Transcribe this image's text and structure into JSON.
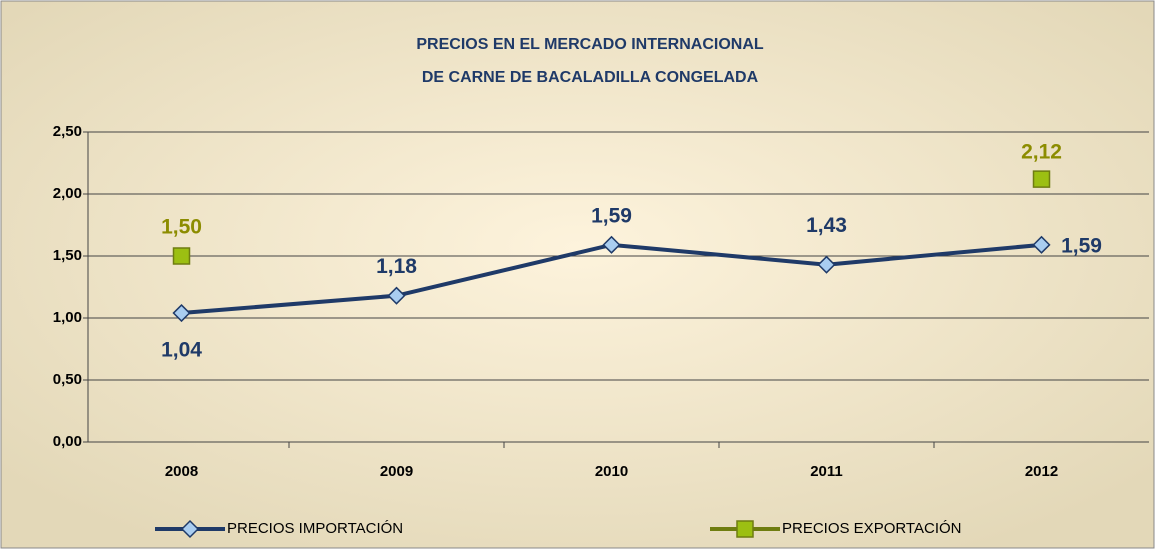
{
  "chart_data": {
    "type": "line",
    "title": [
      "PRECIOS EN EL MERCADO INTERNACIONAL",
      "DE CARNE DE BACALADILLA CONGELADA"
    ],
    "categories": [
      "2008",
      "2009",
      "2010",
      "2011",
      "2012"
    ],
    "series": [
      {
        "name": "PRECIOS IMPORTACIÓN",
        "color": "#1f3a68",
        "marker_color": "#a9cdf0",
        "label_color": "#1f3a68",
        "values": [
          1.04,
          1.18,
          1.59,
          1.43,
          1.59
        ],
        "value_labels": [
          "1,04",
          "1,18",
          "1,59",
          "1,43",
          "1,59"
        ]
      },
      {
        "name": "PRECIOS EXPORTACIÓN",
        "color": "#6f7d10",
        "marker_color": "#9cbf12",
        "label_color": "#8c8c00",
        "values": [
          1.5,
          null,
          null,
          null,
          2.12
        ],
        "value_labels": [
          "1,50",
          null,
          null,
          null,
          "2,12"
        ]
      }
    ],
    "ylim": [
      0,
      2.5
    ],
    "yticks": [
      {
        "value": 0,
        "label": "0,00"
      },
      {
        "value": 0.5,
        "label": "0,50"
      },
      {
        "value": 1,
        "label": "1,00"
      },
      {
        "value": 1.5,
        "label": "1,50"
      },
      {
        "value": 2,
        "label": "2,00"
      },
      {
        "value": 2.5,
        "label": "2,50"
      }
    ],
    "grid": true
  }
}
